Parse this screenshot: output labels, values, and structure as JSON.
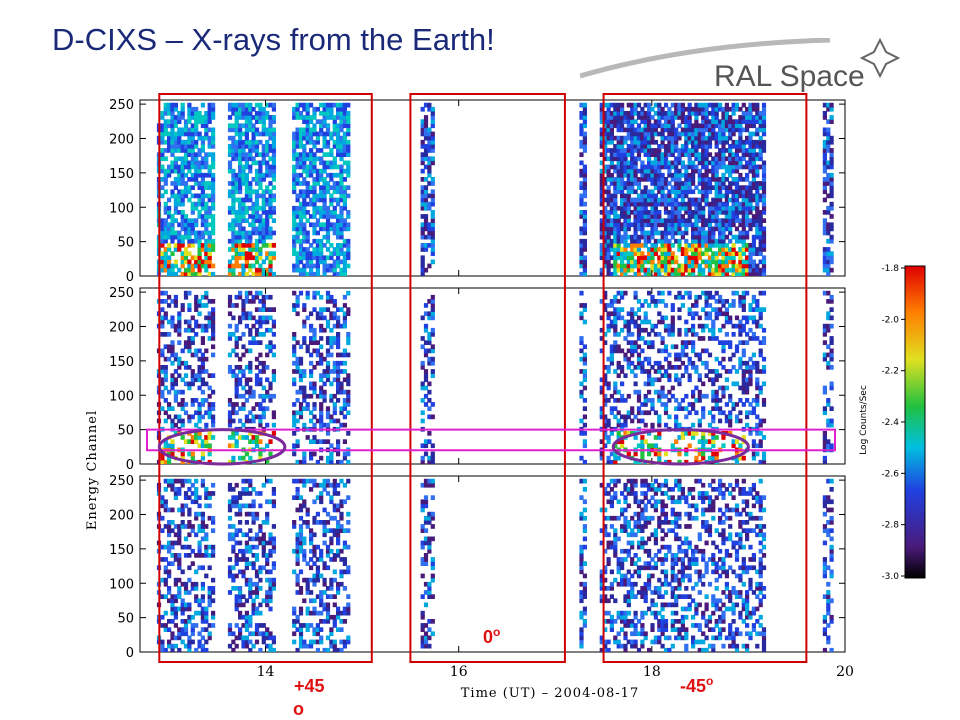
{
  "slide": {
    "title": "D-CIXS – X-rays from the Earth!"
  },
  "logo": {
    "text": "RAL Space"
  },
  "colors": {
    "title": "#1a2a78",
    "selection_box": "#d00000",
    "energy_band": "#e020d0",
    "ellipse": "#7a2a9a"
  },
  "chart_data": {
    "type": "heatmap",
    "title": "",
    "xlabel": "Time (UT) – 2004-08-17",
    "ylabel": "Energy Channel",
    "x_ticks": [
      14,
      16,
      18,
      20
    ],
    "xlim": [
      12.7,
      20.0
    ],
    "y_ticks": [
      0,
      50,
      100,
      150,
      200,
      250
    ],
    "ylim": [
      0,
      256
    ],
    "panels": 3,
    "colorbar": {
      "label": "Log Counts/Sec",
      "ticks": [
        "-1.8",
        "-2.0",
        "-2.2",
        "-2.4",
        "-2.6",
        "-2.8",
        "-3.0"
      ],
      "range": [
        -3.0,
        -1.8
      ]
    },
    "observation_windows": [
      {
        "label": "+45 o",
        "start": 12.9,
        "end": 15.1
      },
      {
        "label": "0o",
        "start": 15.5,
        "end": 17.1
      },
      {
        "label": "-45o",
        "start": 17.5,
        "end": 19.6
      }
    ],
    "highlighted_energy_band": [
      20,
      50
    ],
    "emission_regions": [
      {
        "panel": 2,
        "time_start": 12.9,
        "time_end": 14.2,
        "channels": [
          0,
          50
        ]
      },
      {
        "panel": 2,
        "time_start": 17.6,
        "time_end": 19.0,
        "channels": [
          0,
          50
        ]
      }
    ]
  }
}
